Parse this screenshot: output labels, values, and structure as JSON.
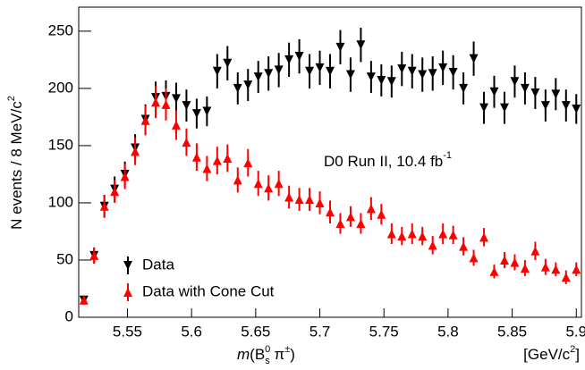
{
  "chart_data": {
    "type": "scatter",
    "x_label": {
      "italic": "m",
      "main": "(B",
      "sup": "0",
      "sub": "s",
      "rest": " π",
      "rest_sup": "±",
      "end": ")"
    },
    "x_unit": {
      "main": "[GeV/c",
      "sup": "2",
      "end": "]"
    },
    "y_label": {
      "main": "N events / 8 MeV/c",
      "sup": "2"
    },
    "annotation": {
      "main": "D0 Run II, 10.4 fb",
      "sup": "-1"
    },
    "xlim": [
      5.512,
      5.904
    ],
    "ylim": [
      0,
      271
    ],
    "xticks": [
      5.55,
      5.6,
      5.65,
      5.7,
      5.75,
      5.8,
      5.85,
      5.9
    ],
    "yticks": [
      0,
      50,
      100,
      150,
      200,
      250
    ],
    "legend": "lower left",
    "x": [
      5.516,
      5.524,
      5.532,
      5.54,
      5.548,
      5.556,
      5.564,
      5.572,
      5.58,
      5.588,
      5.596,
      5.604,
      5.612,
      5.62,
      5.628,
      5.636,
      5.644,
      5.652,
      5.66,
      5.668,
      5.676,
      5.684,
      5.692,
      5.7,
      5.708,
      5.716,
      5.724,
      5.732,
      5.74,
      5.748,
      5.756,
      5.764,
      5.772,
      5.78,
      5.788,
      5.796,
      5.804,
      5.812,
      5.82,
      5.828,
      5.836,
      5.844,
      5.852,
      5.86,
      5.868,
      5.876,
      5.884,
      5.892,
      5.9
    ],
    "series": [
      {
        "name": "Data",
        "color": "#000000",
        "marker": "down",
        "values": [
          15,
          54,
          97,
          112,
          125,
          148,
          173,
          192,
          193,
          191,
          185,
          178,
          180,
          215,
          222,
          200,
          203,
          210,
          213,
          216,
          225,
          228,
          215,
          218,
          215,
          236,
          212,
          238,
          210,
          207,
          206,
          217,
          215,
          212,
          213,
          218,
          214,
          200,
          226,
          183,
          197,
          183,
          206,
          200,
          196,
          185,
          195,
          185,
          182
        ],
        "errors": [
          4,
          7,
          10,
          11,
          11,
          12,
          13,
          14,
          14,
          14,
          14,
          13,
          13,
          15,
          15,
          14,
          14,
          14,
          15,
          15,
          15,
          15,
          15,
          15,
          15,
          15,
          15,
          15,
          14,
          14,
          14,
          15,
          15,
          15,
          15,
          15,
          15,
          14,
          15,
          14,
          14,
          14,
          14,
          14,
          14,
          14,
          14,
          14,
          13
        ]
      },
      {
        "name": "Data with Cone Cut",
        "color": "#ff0000",
        "marker": "up",
        "values": [
          15,
          54,
          97,
          110,
          123,
          145,
          172,
          188,
          186,
          168,
          153,
          140,
          130,
          137,
          139,
          120,
          135,
          117,
          113,
          117,
          105,
          103,
          103,
          100,
          92,
          82,
          88,
          82,
          95,
          90,
          73,
          71,
          73,
          71,
          63,
          73,
          72,
          62,
          52,
          70,
          40,
          50,
          48,
          43,
          58,
          44,
          42,
          35,
          42
        ],
        "errors": [
          4,
          7,
          10,
          10,
          11,
          12,
          13,
          14,
          14,
          13,
          12,
          12,
          11,
          12,
          12,
          11,
          12,
          11,
          11,
          11,
          10,
          10,
          10,
          10,
          10,
          9,
          9,
          9,
          10,
          9,
          9,
          8,
          9,
          8,
          8,
          9,
          8,
          8,
          7,
          8,
          6,
          7,
          7,
          7,
          8,
          7,
          6,
          6,
          6
        ]
      }
    ]
  }
}
